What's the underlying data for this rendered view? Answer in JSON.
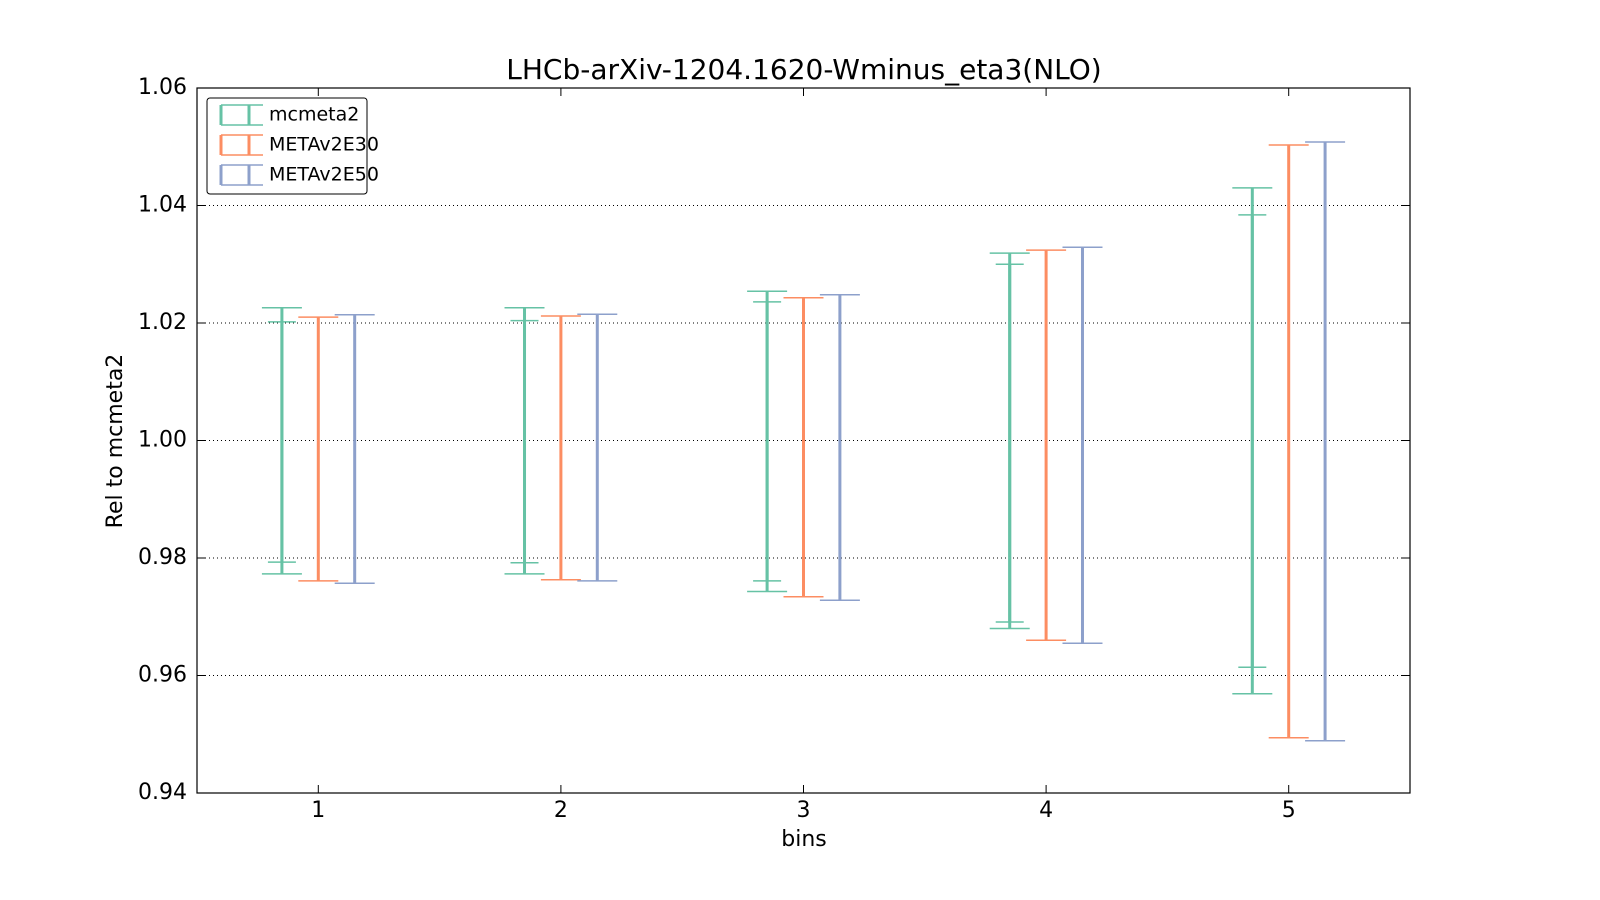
{
  "chart_data": {
    "type": "errorbar",
    "title": "LHCb-arXiv-1204.1620-Wminus_eta3(NLO)",
    "xlabel": "bins",
    "ylabel": "Rel to mcmeta2",
    "x": [
      1,
      2,
      3,
      4,
      5
    ],
    "xlim": [
      0.5,
      5.5
    ],
    "xticks": [
      1,
      2,
      3,
      4,
      5
    ],
    "ylim": [
      0.94,
      1.06
    ],
    "yticks": [
      {
        "value": 0.94,
        "label": "0.94"
      },
      {
        "value": 0.96,
        "label": "0.96"
      },
      {
        "value": 0.98,
        "label": "0.98"
      },
      {
        "value": 1.0,
        "label": "1.00"
      },
      {
        "value": 1.02,
        "label": "1.02"
      },
      {
        "value": 1.04,
        "label": "1.04"
      },
      {
        "value": 1.06,
        "label": "1.06"
      }
    ],
    "grid": true,
    "legend": "upper left",
    "series": [
      {
        "name": "mcmeta2",
        "color": "#66c2a5",
        "upper": [
          1.0226,
          1.0226,
          1.0254,
          1.0319,
          1.043
        ],
        "lower": [
          0.9773,
          0.9773,
          0.9743,
          0.968,
          0.9569
        ],
        "inner_upper": [
          1.0202,
          1.0204,
          1.0236,
          1.03,
          1.0384
        ],
        "inner_lower": [
          0.9793,
          0.9792,
          0.9761,
          0.9691,
          0.9614
        ]
      },
      {
        "name": "METAv2E30",
        "color": "#fc8d62",
        "upper": [
          1.021,
          1.0212,
          1.0243,
          1.0324,
          1.0503
        ],
        "lower": [
          0.9761,
          0.9763,
          0.9734,
          0.966,
          0.9494
        ]
      },
      {
        "name": "METAv2E50",
        "color": "#8da0cb",
        "upper": [
          1.0214,
          1.0215,
          1.0248,
          1.0329,
          1.0508
        ],
        "lower": [
          0.9757,
          0.9761,
          0.9728,
          0.9655,
          0.9489
        ]
      }
    ]
  }
}
